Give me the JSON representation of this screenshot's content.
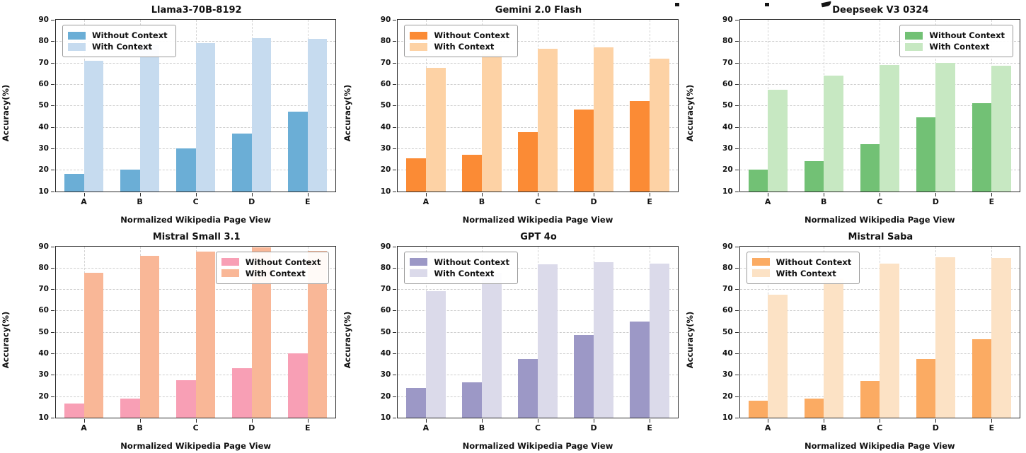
{
  "figure": {
    "background": "#ffffff",
    "clipped_suptitle_note": "only three descender fragments of a larger clipped title are visible at the very top",
    "yticks": [
      90,
      80,
      70,
      60,
      50,
      40,
      30,
      20,
      10
    ],
    "ylim": [
      10,
      90
    ],
    "categories": [
      "A",
      "B",
      "C",
      "D",
      "E"
    ],
    "xlabel": "Normalized Wikipedia Page View",
    "ylabel": "Accuracy(%)",
    "legend_labels": [
      "Without Context",
      "With Context"
    ]
  },
  "chart_data": [
    {
      "type": "bar",
      "title": "Llama3-70B-8192",
      "xlabel": "Normalized Wikipedia Page View",
      "ylabel": "Accuracy(%)",
      "ylim": [
        10,
        90
      ],
      "grid": "dashed",
      "legend_position": "upper-left",
      "categories": [
        "A",
        "B",
        "C",
        "D",
        "E"
      ],
      "series": [
        {
          "name": "Without Context",
          "color": "#6BAED6",
          "values": [
            18,
            20,
            30,
            37,
            47
          ]
        },
        {
          "name": "With Context",
          "color": "#C6DBEF",
          "values": [
            71,
            78,
            79,
            81.5,
            81
          ]
        }
      ]
    },
    {
      "type": "bar",
      "title": "Gemini 2.0 Flash",
      "xlabel": "Normalized Wikipedia Page View",
      "ylabel": "Accuracy(%)",
      "ylim": [
        10,
        90
      ],
      "grid": "dashed",
      "legend_position": "upper-left",
      "categories": [
        "A",
        "B",
        "C",
        "D",
        "E"
      ],
      "series": [
        {
          "name": "Without Context",
          "color": "#FB8B35",
          "values": [
            25.5,
            27,
            37.5,
            48,
            52
          ]
        },
        {
          "name": "With Context",
          "color": "#FDD2A5",
          "values": [
            67.5,
            74,
            76.5,
            77,
            72
          ]
        }
      ]
    },
    {
      "type": "bar",
      "title": "Deepseek V3 0324",
      "xlabel": "Normalized Wikipedia Page View",
      "ylabel": "Accuracy(%)",
      "ylim": [
        10,
        90
      ],
      "grid": "dashed",
      "legend_position": "upper-right",
      "categories": [
        "A",
        "B",
        "C",
        "D",
        "E"
      ],
      "series": [
        {
          "name": "Without Context",
          "color": "#72C175",
          "values": [
            20,
            24,
            32,
            44.5,
            51
          ]
        },
        {
          "name": "With Context",
          "color": "#C7E8C2",
          "values": [
            57.5,
            64,
            69,
            70,
            68.5
          ]
        }
      ]
    },
    {
      "type": "bar",
      "title": "Mistral Small 3.1",
      "xlabel": "Normalized Wikipedia Page View",
      "ylabel": "Accuracy(%)",
      "ylim": [
        10,
        90
      ],
      "grid": "dashed",
      "legend_position": "upper-right",
      "categories": [
        "A",
        "B",
        "C",
        "D",
        "E"
      ],
      "series": [
        {
          "name": "Without Context",
          "color": "#F89FB5",
          "values": [
            16.5,
            19,
            27.5,
            33,
            40
          ]
        },
        {
          "name": "With Context",
          "color": "#F9B797",
          "values": [
            77.5,
            85.5,
            87.5,
            89.5,
            88
          ]
        }
      ]
    },
    {
      "type": "bar",
      "title": "GPT 4o",
      "xlabel": "Normalized Wikipedia Page View",
      "ylabel": "Accuracy(%)",
      "ylim": [
        10,
        90
      ],
      "grid": "dashed",
      "legend_position": "upper-left",
      "categories": [
        "A",
        "B",
        "C",
        "D",
        "E"
      ],
      "series": [
        {
          "name": "Without Context",
          "color": "#9C98C6",
          "values": [
            24,
            26.5,
            37.5,
            48.5,
            55
          ]
        },
        {
          "name": "With Context",
          "color": "#DBDAEA",
          "values": [
            69,
            77.5,
            81.5,
            82.5,
            82
          ]
        }
      ]
    },
    {
      "type": "bar",
      "title": "Mistral Saba",
      "xlabel": "Normalized Wikipedia Page View",
      "ylabel": "Accuracy(%)",
      "ylim": [
        10,
        90
      ],
      "grid": "dashed",
      "legend_position": "upper-left",
      "categories": [
        "A",
        "B",
        "C",
        "D",
        "E"
      ],
      "series": [
        {
          "name": "Without Context",
          "color": "#FBAB63",
          "values": [
            18,
            19,
            27,
            37.5,
            46.5
          ]
        },
        {
          "name": "With Context",
          "color": "#FCE2C5",
          "values": [
            67.5,
            75,
            82,
            85,
            84.5
          ]
        }
      ]
    }
  ]
}
